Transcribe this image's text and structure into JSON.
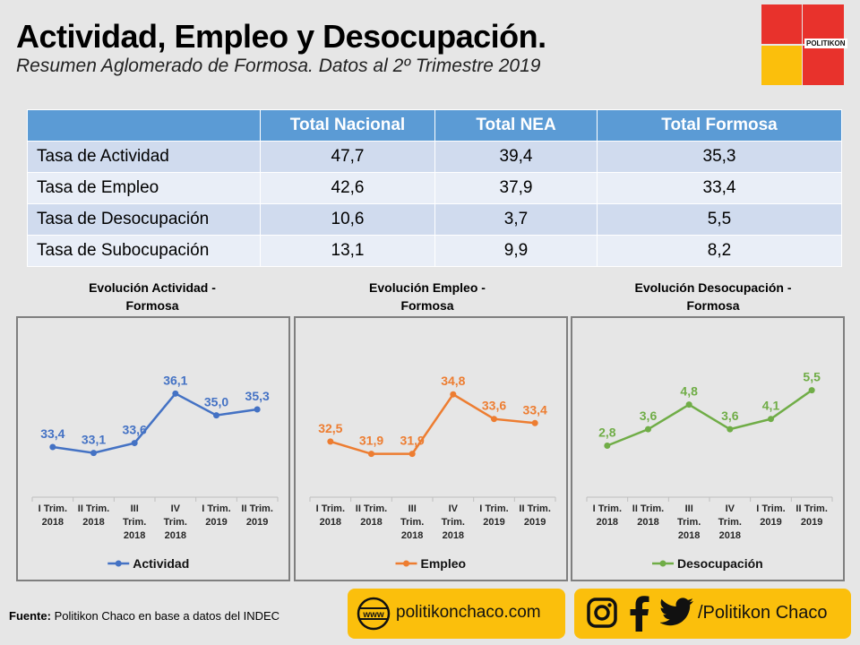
{
  "header": {
    "title": "Actividad, Empleo y Desocupación.",
    "subtitle": "Resumen Aglomerado de Formosa. Datos al 2º Trimestre 2019"
  },
  "logo": {
    "brand": "POLITIKON",
    "colors": [
      "#e8322c",
      "#fbbf0c"
    ]
  },
  "table": {
    "headers": [
      "",
      "Total Nacional",
      "Total NEA",
      "Total Formosa"
    ],
    "rows": [
      {
        "label": "Tasa de Actividad",
        "values": [
          "47,7",
          "39,4",
          "35,3"
        ]
      },
      {
        "label": "Tasa de Empleo",
        "values": [
          "42,6",
          "37,9",
          "33,4"
        ]
      },
      {
        "label": "Tasa de Desocupación",
        "values": [
          "10,6",
          "3,7",
          "5,5"
        ]
      },
      {
        "label": "Tasa de Subocupación",
        "values": [
          "13,1",
          "9,9",
          "8,2"
        ]
      }
    ]
  },
  "chart_data": [
    {
      "type": "line",
      "title_line1": "Evolución  Actividad  -",
      "title_line2": "Formosa",
      "categories": [
        [
          "I Trim.",
          "2018"
        ],
        [
          "II Trim.",
          "2018"
        ],
        [
          "III",
          "Trim.",
          "2018"
        ],
        [
          "IV",
          "Trim.",
          "2018"
        ],
        [
          "I Trim.",
          "2019"
        ],
        [
          "II Trim.",
          "2019"
        ]
      ],
      "series": [
        {
          "name": "Actividad",
          "values": [
            33.4,
            33.1,
            33.6,
            36.1,
            35.0,
            35.3
          ],
          "labels": [
            "33,4",
            "33,1",
            "33,6",
            "36,1",
            "35,0",
            "35,3"
          ],
          "color": "#4472c4"
        }
      ],
      "ylim": [
        31.5,
        37.2
      ]
    },
    {
      "type": "line",
      "title_line1": "Evolución  Empleo  -",
      "title_line2": "Formosa",
      "categories": [
        [
          "I Trim.",
          "2018"
        ],
        [
          "II Trim.",
          "2018"
        ],
        [
          "III",
          "Trim.",
          "2018"
        ],
        [
          "IV",
          "Trim.",
          "2018"
        ],
        [
          "I Trim.",
          "2019"
        ],
        [
          "II Trim.",
          "2019"
        ]
      ],
      "series": [
        {
          "name": "Empleo",
          "values": [
            32.5,
            31.9,
            31.9,
            34.8,
            33.6,
            33.4
          ],
          "labels": [
            "32,5",
            "31,9",
            "31,9",
            "34,8",
            "33,6",
            "33,4"
          ],
          "color": "#ed7d31"
        }
      ],
      "ylim": [
        30.4,
        35.9
      ]
    },
    {
      "type": "line",
      "title_line1": "Evolución  Desocupación  -",
      "title_line2": "Formosa",
      "categories": [
        [
          "I Trim.",
          "2018"
        ],
        [
          "II Trim.",
          "2018"
        ],
        [
          "III",
          "Trim.",
          "2018"
        ],
        [
          "IV",
          "Trim.",
          "2018"
        ],
        [
          "I Trim.",
          "2019"
        ],
        [
          "II Trim.",
          "2019"
        ]
      ],
      "series": [
        {
          "name": "Desocupación",
          "values": [
            2.8,
            3.6,
            4.8,
            3.6,
            4.1,
            5.5
          ],
          "labels": [
            "2,8",
            "3,6",
            "4,8",
            "3,6",
            "4,1",
            "5,5"
          ],
          "color": "#70ad47"
        }
      ],
      "ylim": [
        0.9,
        6.4
      ]
    }
  ],
  "footer": {
    "source_label": "Fuente:",
    "source_text": " Politikon  Chaco en base a datos del INDEC",
    "website": "politikonchaco.com",
    "social": "/Politikon  Chaco",
    "icons": [
      "www-globe-icon",
      "instagram-icon",
      "facebook-icon",
      "twitter-icon"
    ]
  }
}
